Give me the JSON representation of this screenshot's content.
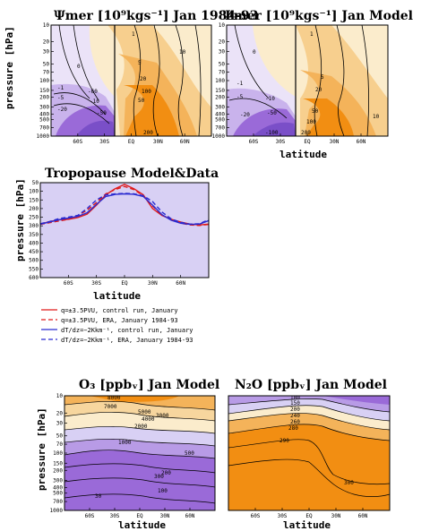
{
  "panels": {
    "p1": {
      "title": "Ψmer [10⁹kgs⁻¹] Jan 1984-93",
      "ylabel": "pressure [hPa]"
    },
    "p2": {
      "title": "Ψmer [10⁹kgs⁻¹] Jan Model",
      "xlabel": "latitude"
    },
    "p3": {
      "title": "Tropopause  Model&Data",
      "ylabel": "pressure [hPa]",
      "xlabel": "latitude"
    },
    "p4": {
      "title": "O₃ [ppbᵥ]  Jan  Model",
      "ylabel": "pressure [hPa]",
      "xlabel": "latitude"
    },
    "p5": {
      "title": "N₂O [ppbᵥ]  Jan  Model",
      "xlabel": "latitude"
    }
  },
  "colors": {
    "purple": "#9a6ad8",
    "lavender": "#d8d0f4",
    "cream": "#fbeccc",
    "orange": "#f28e12",
    "red": "#e01a1a",
    "blue": "#2a2ad0"
  },
  "chart_data": [
    {
      "type": "heatmap",
      "id": "streamfunction-era",
      "title": "Ψmer [10⁹kgs⁻¹] Jan 1984-93",
      "ylabel": "pressure [hPa]",
      "x_ticks": [
        "60S",
        "30S",
        "EQ",
        "30N",
        "60N"
      ],
      "y_ticks": [
        "10",
        "20",
        "30",
        "50",
        "70",
        "100",
        "150",
        "200",
        "300",
        "400",
        "500",
        "700",
        "1000"
      ],
      "contour_labels": [
        "0",
        "-1",
        "-5",
        "-10",
        "-20",
        "-50",
        "-60",
        "1",
        "5",
        "10",
        "20",
        "50",
        "100",
        "200"
      ]
    },
    {
      "type": "heatmap",
      "id": "streamfunction-model",
      "title": "Ψmer [10⁹kgs⁻¹] Jan Model",
      "xlabel": "latitude",
      "x_ticks": [
        "60S",
        "30S",
        "EQ",
        "30N",
        "60N"
      ],
      "y_ticks": [
        "10",
        "20",
        "30",
        "50",
        "70",
        "100",
        "150",
        "200",
        "300",
        "400",
        "500",
        "700",
        "1000"
      ],
      "contour_labels": [
        "0",
        "-1",
        "-5",
        "-10",
        "-20",
        "-50",
        "-100",
        "1",
        "5",
        "10",
        "20",
        "50",
        "100",
        "200"
      ]
    },
    {
      "type": "line",
      "id": "tropopause",
      "title": "Tropopause  Model&Data",
      "xlabel": "latitude",
      "ylabel": "pressure [hPa]",
      "x_ticks": [
        "60S",
        "30S",
        "EQ",
        "30N",
        "60N"
      ],
      "y_ticks": [
        "50",
        "100",
        "150",
        "200",
        "250",
        "300",
        "350",
        "400",
        "450",
        "500",
        "550",
        "600"
      ],
      "x": [
        -90,
        -80,
        -70,
        -60,
        -50,
        -40,
        -30,
        -20,
        -10,
        0,
        10,
        20,
        30,
        40,
        50,
        60,
        70,
        80,
        90
      ],
      "ylim": [
        600,
        50
      ],
      "series": [
        {
          "name": "q=±3.5PVU, control run, January",
          "values": [
            290,
            275,
            265,
            262,
            252,
            232,
            180,
            120,
            85,
            60,
            85,
            120,
            200,
            240,
            262,
            278,
            290,
            295,
            290
          ]
        },
        {
          "name": "q=±3.5PVU, ERA, January 1984-93",
          "values": [
            292,
            282,
            272,
            262,
            240,
            210,
            165,
            115,
            90,
            72,
            90,
            125,
            185,
            238,
            262,
            285,
            295,
            298,
            292
          ]
        },
        {
          "name": "dT/dz=−2Kkm⁻¹, control run, January",
          "values": [
            290,
            278,
            265,
            255,
            245,
            225,
            175,
            130,
            118,
            115,
            117,
            130,
            180,
            235,
            268,
            285,
            292,
            290,
            270
          ]
        },
        {
          "name": "dT/dz=−2Kkm⁻¹, ERA, January 1984-93",
          "values": [
            288,
            275,
            258,
            250,
            240,
            200,
            150,
            120,
            115,
            112,
            115,
            125,
            160,
            220,
            260,
            280,
            290,
            288,
            265
          ]
        }
      ]
    },
    {
      "type": "heatmap",
      "id": "ozone",
      "title": "O₃ [ppbᵥ]  Jan  Model",
      "xlabel": "latitude",
      "ylabel": "pressure [hPa]",
      "x_ticks": [
        "60S",
        "30S",
        "EQ",
        "30N",
        "60N"
      ],
      "y_ticks": [
        "10",
        "20",
        "30",
        "50",
        "70",
        "100",
        "150",
        "200",
        "300",
        "400",
        "500",
        "700",
        "1000"
      ],
      "contour_labels": [
        "8000",
        "7000",
        "5000",
        "4000",
        "3000",
        "2000",
        "1000",
        "500",
        "300",
        "200",
        "100",
        "30"
      ]
    },
    {
      "type": "heatmap",
      "id": "nitrous-oxide",
      "title": "N₂O [ppbᵥ]  Jan  Model",
      "xlabel": "latitude",
      "x_ticks": [
        "60S",
        "30S",
        "EQ",
        "30N",
        "60N"
      ],
      "contour_labels": [
        "100",
        "150",
        "200",
        "240",
        "260",
        "280",
        "290",
        "300"
      ]
    }
  ]
}
